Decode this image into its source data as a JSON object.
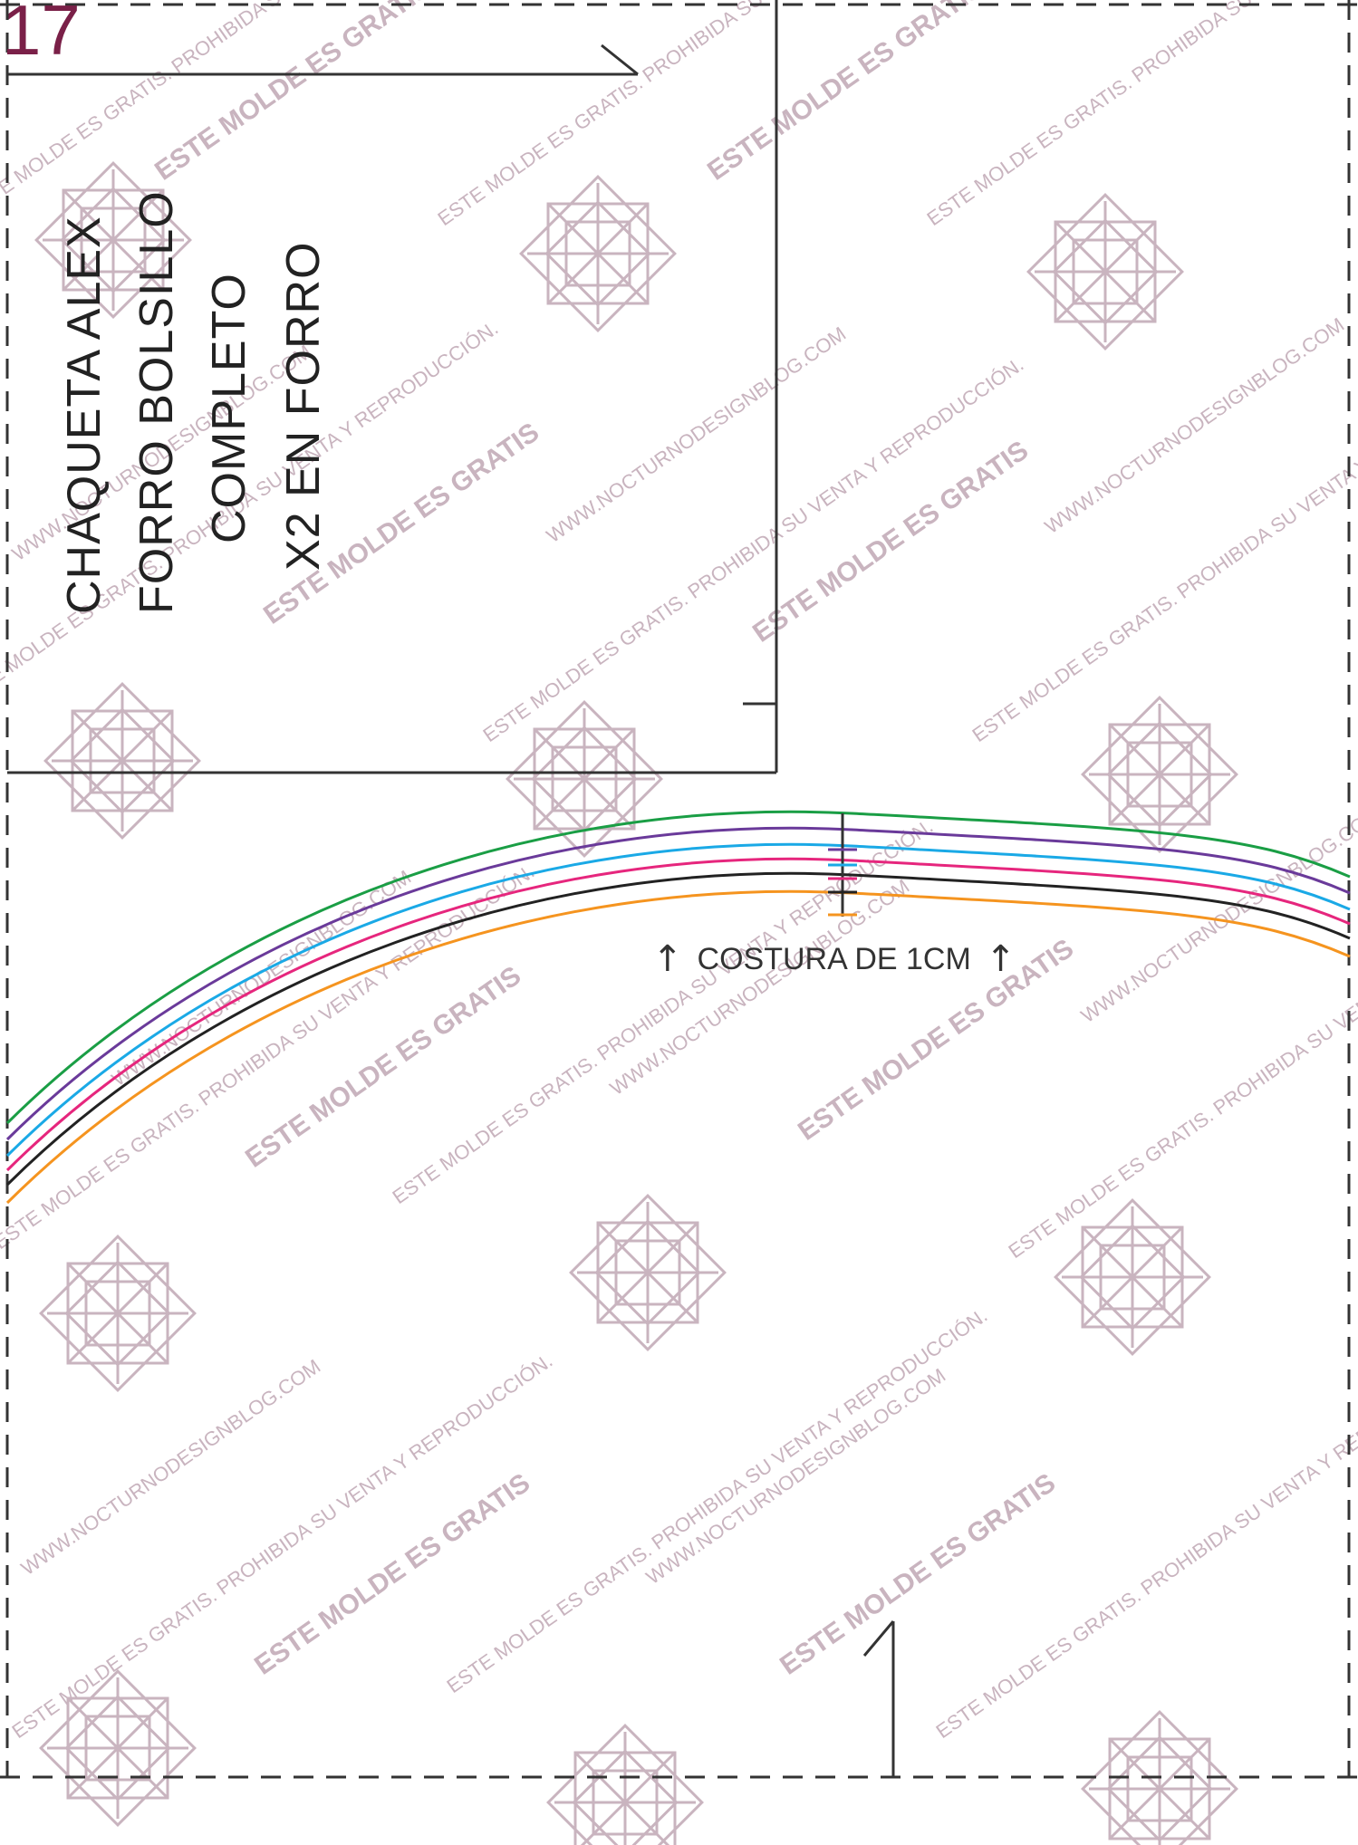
{
  "page_number": "17",
  "pattern_label": {
    "lines": [
      "CHAQUETA ALEX",
      "FORRO BOLSILLO",
      "COMPLETO",
      "X2 EN FORRO"
    ]
  },
  "seam_note": {
    "left_arrow": "↑",
    "text": "COSTURA DE 1CM",
    "right_arrow": "↑"
  },
  "watermark": {
    "phrase_1": "ESTE MOLDE ES GRATIS",
    "phrase_2": "WWW.NOCTURNODESIGNBLOG.COM",
    "phrase_3": "ESTE MOLDE ES GRATIS. PROHIBIDA SU VENTA Y REPRODUCCIÓN.",
    "emblem_icon": "geometric-knot-icon",
    "color": "#c9b4bf"
  },
  "size_lines": {
    "colors": [
      "#1a9e45",
      "#6a3a9a",
      "#1aa9e6",
      "#e6267d",
      "#222222",
      "#f5941f"
    ]
  },
  "colors": {
    "page_number": "#7a2048",
    "outline": "#333333",
    "dashed_border": "#333333"
  }
}
